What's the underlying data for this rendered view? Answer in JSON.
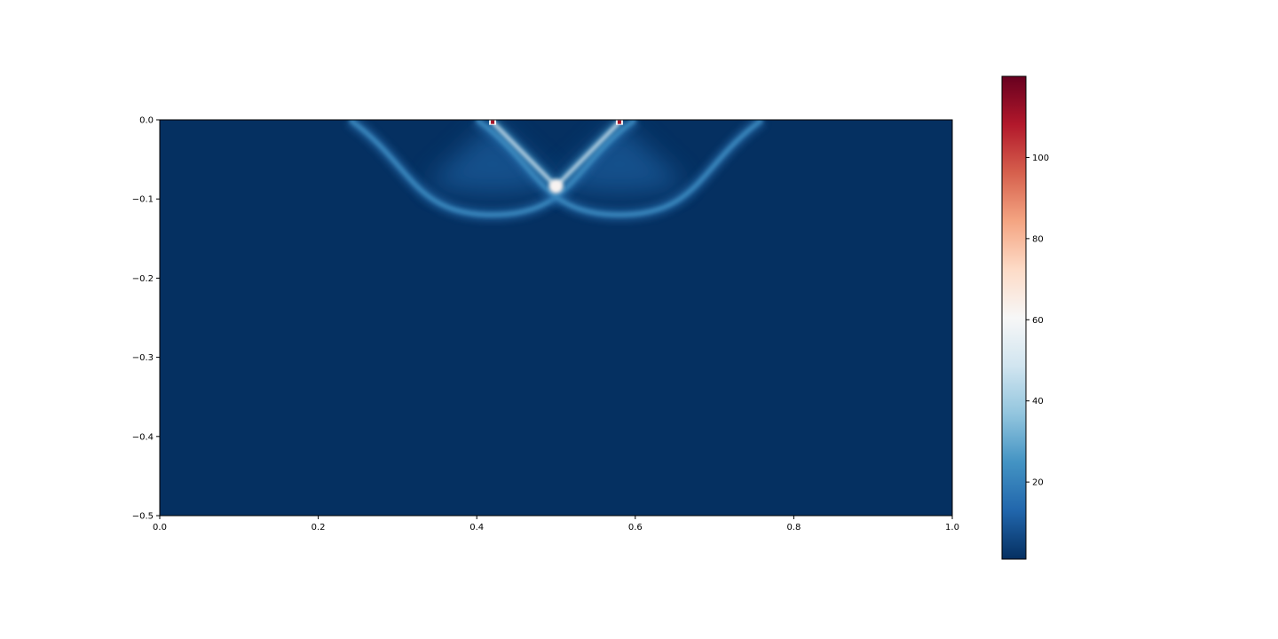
{
  "chart_data": {
    "type": "heatmap",
    "title": "",
    "xlabel": "",
    "ylabel": "",
    "xlim": [
      0.0,
      1.0
    ],
    "ylim": [
      -0.5,
      0.0
    ],
    "x_ticks": [
      "0.0",
      "0.2",
      "0.4",
      "0.6",
      "0.8",
      "1.0"
    ],
    "y_ticks": [
      "0.0",
      "−0.1",
      "−0.2",
      "−0.3",
      "−0.4",
      "−0.5"
    ],
    "grid": false,
    "background_value": 1,
    "colorbar": {
      "colormap": "RdBu_r",
      "range": [
        1,
        120
      ],
      "ticks": [
        "20",
        "40",
        "60",
        "80",
        "100"
      ],
      "stops": [
        "#053061",
        "#2166ac",
        "#4393c3",
        "#92c5de",
        "#d1e5f0",
        "#f7f7f7",
        "#fddbc7",
        "#f4a582",
        "#d6604d",
        "#b2182b",
        "#67001f"
      ]
    },
    "features": [
      {
        "kind": "source",
        "x": 0.42,
        "y": -0.003,
        "value": 110
      },
      {
        "kind": "source",
        "x": 0.58,
        "y": -0.003,
        "value": 110
      },
      {
        "kind": "crossing",
        "x": 0.5,
        "y": -0.084,
        "value": 62
      },
      {
        "kind": "ray",
        "from": [
          0.42,
          -0.003
        ],
        "to": [
          0.5,
          -0.084
        ],
        "value": 55
      },
      {
        "kind": "ray",
        "from": [
          0.58,
          -0.003
        ],
        "to": [
          0.5,
          -0.084
        ],
        "value": 55
      },
      {
        "kind": "wavefront",
        "center_x": 0.42,
        "apex_y": -0.12,
        "top_x": [
          0.24,
          0.6
        ],
        "value": 22
      },
      {
        "kind": "wavefront",
        "center_x": 0.58,
        "apex_y": -0.12,
        "top_x": [
          0.4,
          0.76
        ],
        "value": 22
      }
    ]
  }
}
